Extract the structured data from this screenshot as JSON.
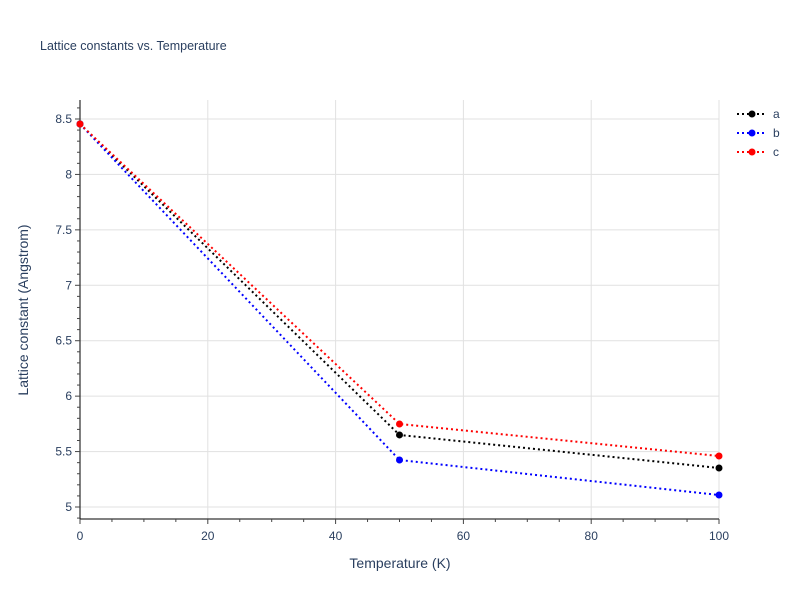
{
  "chart_data": {
    "type": "line",
    "title": "Lattice constants vs. Temperature",
    "xlabel": "Temperature (K)",
    "ylabel": "Lattice constant (Angstrom)",
    "x": [
      0,
      50,
      100
    ],
    "series": [
      {
        "name": "a",
        "color": "#000000",
        "values": [
          8.455,
          5.65,
          5.352
        ]
      },
      {
        "name": "b",
        "color": "#0000ff",
        "values": [
          8.455,
          5.424,
          5.108
        ]
      },
      {
        "name": "c",
        "color": "#ff0000",
        "values": [
          8.455,
          5.749,
          5.46
        ]
      }
    ],
    "xlim": [
      0,
      100
    ],
    "ylim": [
      4.9,
      8.67
    ],
    "xticks": [
      0,
      20,
      40,
      60,
      80,
      100
    ],
    "yticks": [
      5,
      5.5,
      6,
      6.5,
      7,
      7.5,
      8,
      8.5
    ],
    "ytick_labels": [
      "5",
      "5.5",
      "6",
      "6.5",
      "7",
      "7.5",
      "8",
      "8.5"
    ],
    "grid": true,
    "legend_position": "top-right",
    "line_style": "dotted",
    "markers": true
  }
}
